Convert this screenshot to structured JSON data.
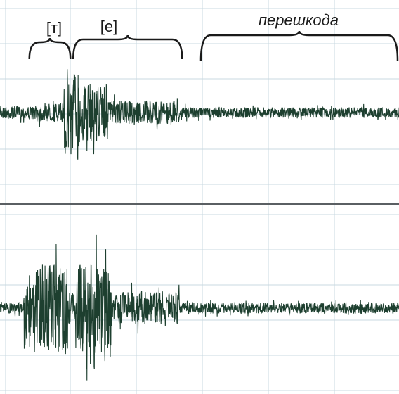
{
  "chart_data": {
    "type": "line",
    "title": "",
    "xlabel": "",
    "ylabel": "",
    "grid": true,
    "series": [
      {
        "segments": [
          {
            "x": [
              0.0,
              0.09
            ],
            "level": 0.12
          },
          {
            "x": [
              0.09,
              0.16
            ],
            "level": 0.18
          },
          {
            "x": [
              0.16,
              0.2
            ],
            "level": 0.9
          },
          {
            "x": [
              0.2,
              0.27
            ],
            "level": 0.55
          },
          {
            "x": [
              0.27,
              0.45
            ],
            "level": 0.22
          },
          {
            "x": [
              0.45,
              1.0
            ],
            "level": 0.1
          }
        ]
      },
      {
        "segments": [
          {
            "x": [
              0.0,
              0.06
            ],
            "level": 0.1
          },
          {
            "x": [
              0.06,
              0.17
            ],
            "level": 0.85
          },
          {
            "x": [
              0.17,
              0.19
            ],
            "level": 0.3
          },
          {
            "x": [
              0.19,
              0.28
            ],
            "level": 0.85
          },
          {
            "x": [
              0.28,
              0.45
            ],
            "level": 0.3
          },
          {
            "x": [
              0.45,
              1.0
            ],
            "level": 0.1
          }
        ]
      }
    ],
    "annotations": [
      {
        "text": "[т]",
        "x_start": 0.07,
        "x_end": 0.18,
        "italic": false
      },
      {
        "text": "[е]",
        "x_start": 0.18,
        "x_end": 0.46,
        "italic": false
      },
      {
        "text": "перешкода",
        "x_start": 0.5,
        "x_end": 1.0,
        "italic": true
      }
    ]
  },
  "colors": {
    "waveform": "#1d3f2f",
    "grid": "#c9d8e0",
    "divider": "#5a5f63",
    "background": "#ffffff"
  }
}
